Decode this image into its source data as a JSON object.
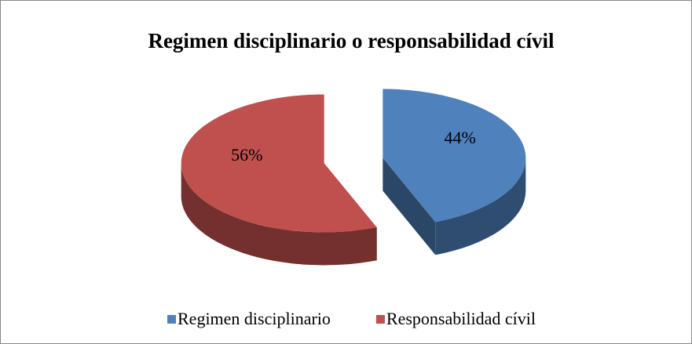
{
  "chart_data": {
    "type": "pie",
    "title": "Regimen disciplinario o responsabilidad cívil",
    "categories": [
      "Regimen disciplinario",
      "Responsabilidad cívil"
    ],
    "values": [
      44,
      56
    ],
    "value_labels": [
      "44%",
      "56%"
    ],
    "colors": [
      "#4f81bd",
      "#c0504d"
    ],
    "legend": "bottom"
  }
}
